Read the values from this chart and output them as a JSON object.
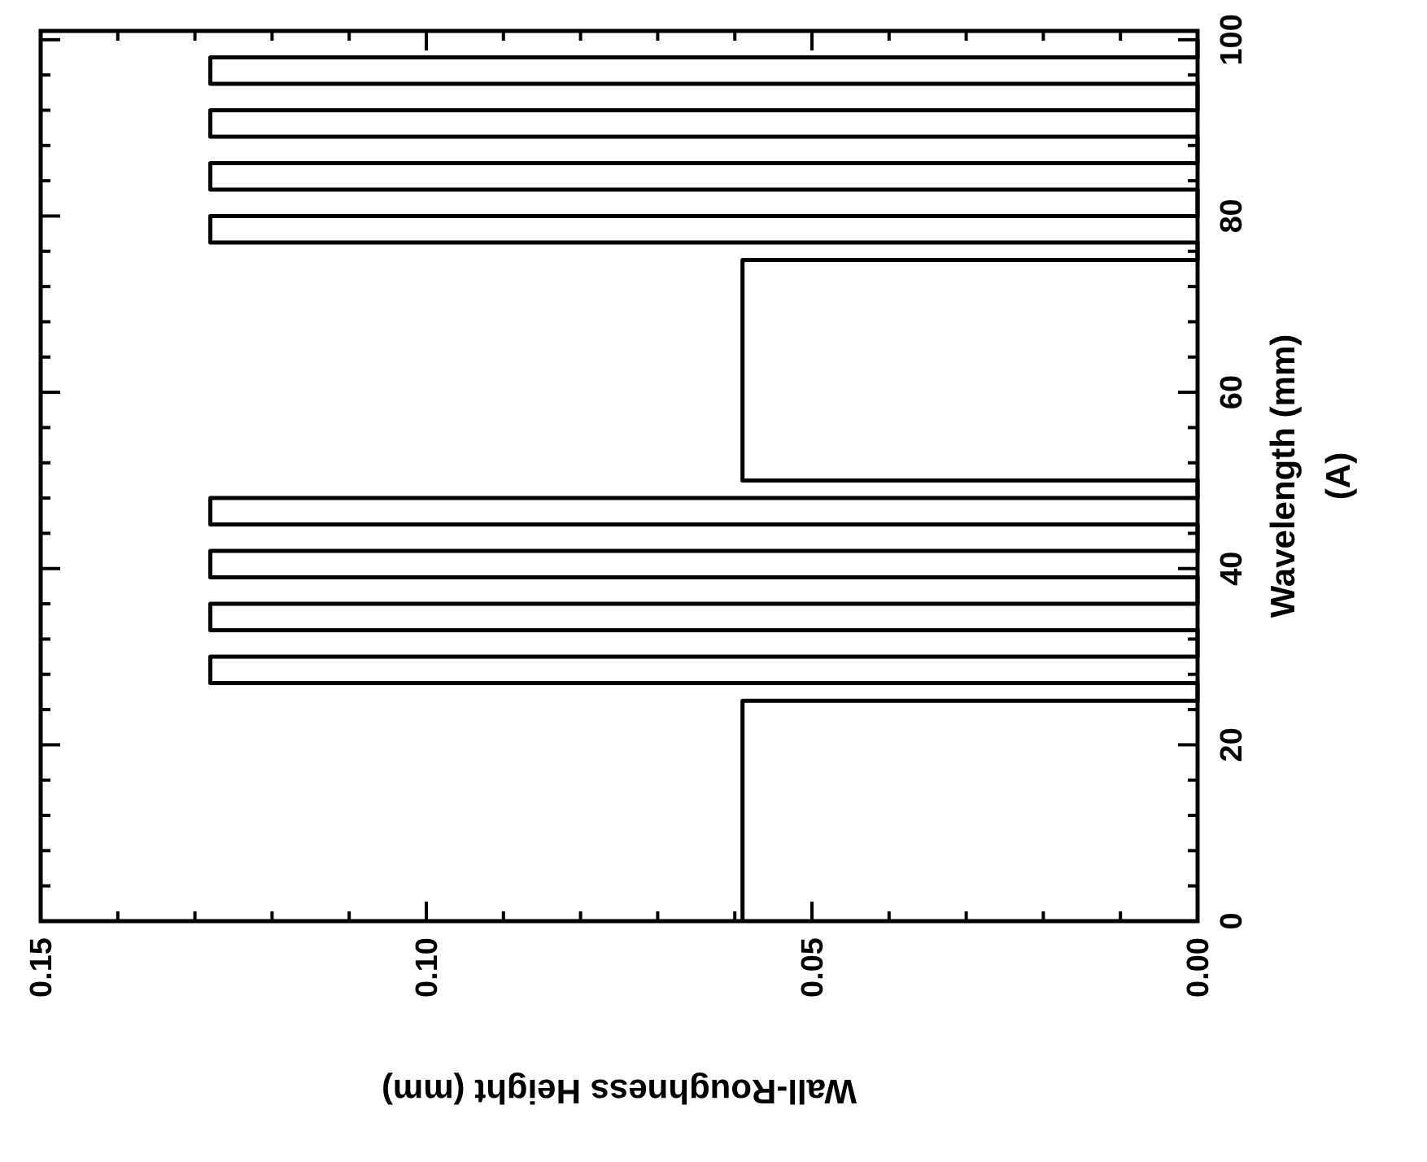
{
  "chart_data": {
    "type": "step",
    "orientation": "horizontal",
    "xlabel": "Wall-Roughness Height (mm)",
    "ylabel": "Wavelength (mm)",
    "annotations": [
      "(A)"
    ],
    "x": [
      0,
      25,
      27,
      30,
      33,
      36,
      39,
      42,
      45,
      48,
      50,
      75,
      77,
      80,
      83,
      86,
      89,
      92,
      95,
      98,
      100
    ],
    "series": [
      {
        "color": "#000000",
        "values": [
          0.059,
          0,
          0.128,
          0,
          0.128,
          0,
          0.128,
          0,
          0.128,
          0,
          0.059,
          0,
          0.128,
          0,
          0.128,
          0,
          0.128,
          0,
          0.128,
          0,
          0
        ]
      }
    ],
    "xlim": [
      0.15,
      0
    ],
    "ylim": [
      0,
      101
    ],
    "yticks": [
      0,
      {
        "value": 4,
        "label": null
      },
      {
        "value": 8,
        "label": null
      },
      {
        "value": 12,
        "label": null
      },
      {
        "value": 16,
        "label": null
      },
      20,
      {
        "value": 24,
        "label": null
      },
      {
        "value": 28,
        "label": null
      },
      {
        "value": 32,
        "label": null
      },
      {
        "value": 36,
        "label": null
      },
      40,
      {
        "value": 44,
        "label": null
      },
      {
        "value": 48,
        "label": null
      },
      {
        "value": 52,
        "label": null
      },
      {
        "value": 56,
        "label": null
      },
      60,
      {
        "value": 64,
        "label": null
      },
      {
        "value": 68,
        "label": null
      },
      {
        "value": 72,
        "label": null
      },
      {
        "value": 76,
        "label": null
      },
      80,
      {
        "value": 84,
        "label": null
      },
      {
        "value": 88,
        "label": null
      },
      {
        "value": 92,
        "label": null
      },
      {
        "value": 96,
        "label": null
      },
      100
    ],
    "xticks": [
      {
        "value": 0,
        "label": "0.00"
      },
      {
        "value": 0.01,
        "label": null
      },
      {
        "value": 0.02,
        "label": null
      },
      {
        "value": 0.03,
        "label": null
      },
      {
        "value": 0.04,
        "label": null
      },
      {
        "value": 0.05,
        "label": "0.05"
      },
      {
        "value": 0.06,
        "label": null
      },
      {
        "value": 0.07,
        "label": null
      },
      {
        "value": 0.08,
        "label": null
      },
      {
        "value": 0.09,
        "label": null
      },
      {
        "value": 0.1,
        "label": "0.10"
      },
      {
        "value": 0.11,
        "label": null
      },
      {
        "value": 0.12,
        "label": null
      },
      {
        "value": 0.13,
        "label": null
      },
      {
        "value": 0.14,
        "label": null
      },
      {
        "value": 0.15,
        "label": "0.15"
      }
    ],
    "grid": false
  }
}
